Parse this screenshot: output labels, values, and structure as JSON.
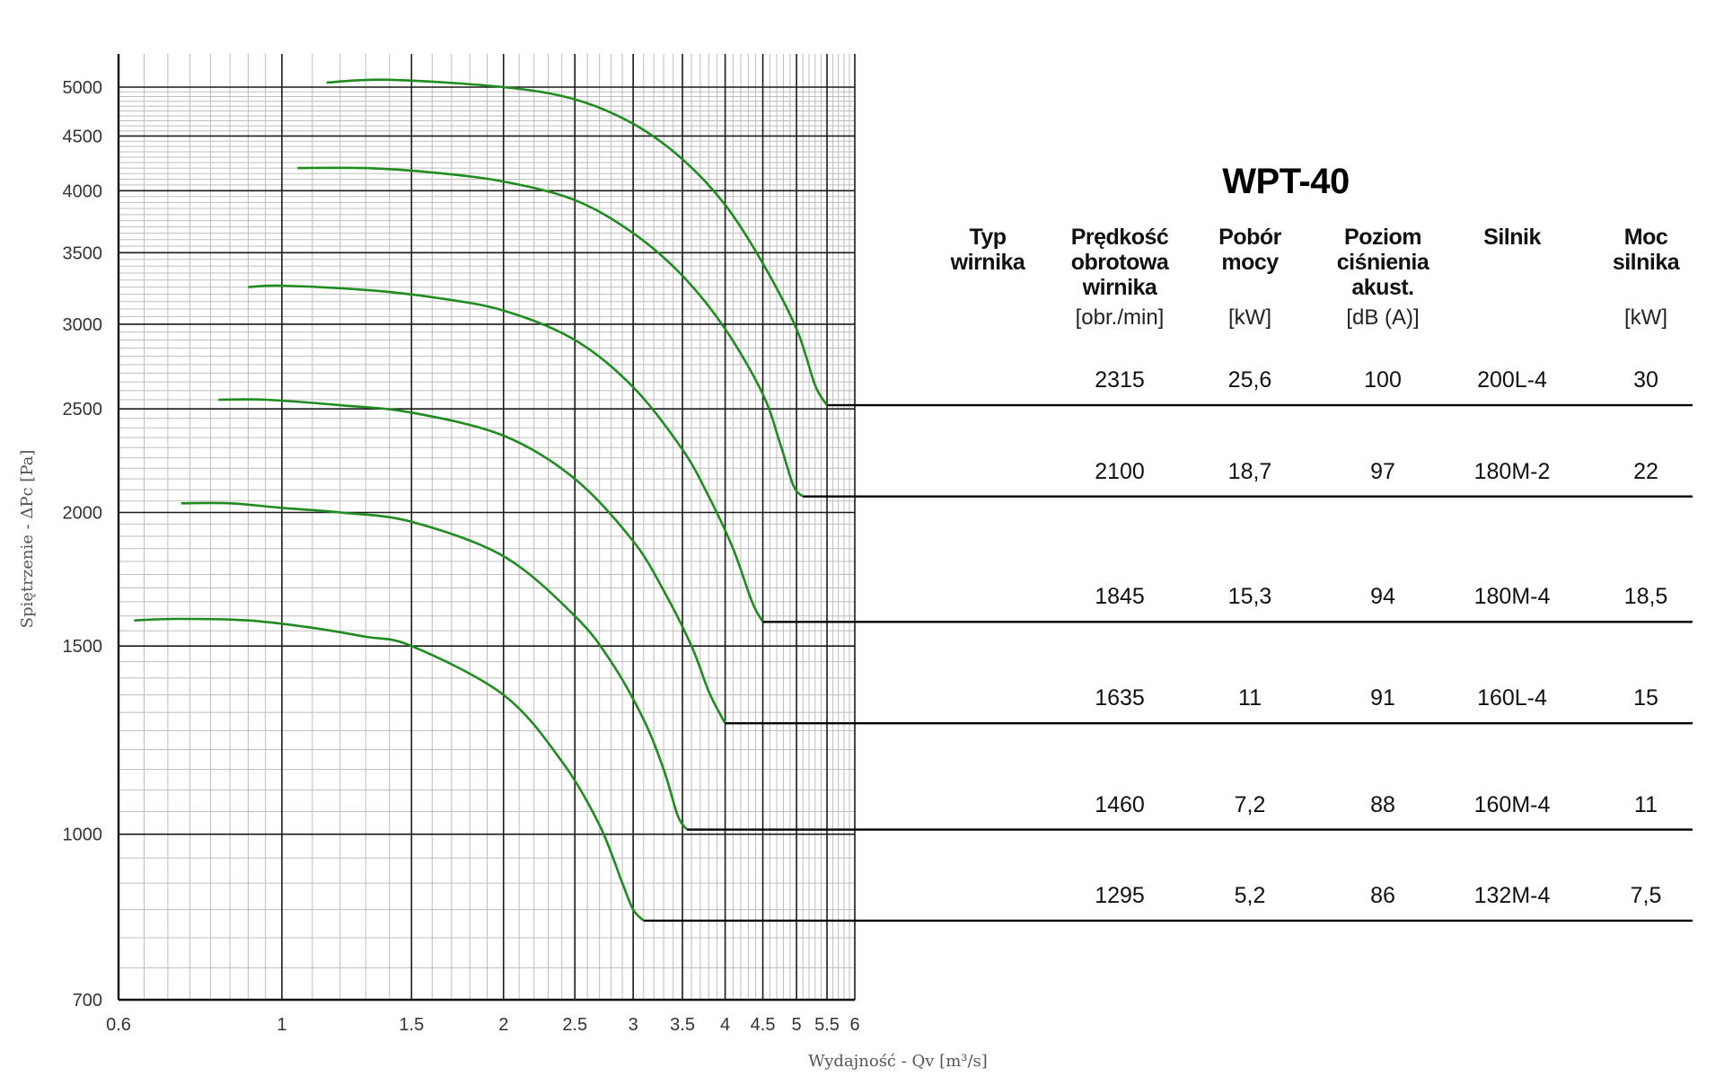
{
  "chart_data": {
    "type": "line",
    "title": "WPT-40",
    "xlabel": "Wydajność - Qv [m³/s]",
    "ylabel": "Spiętrzenie - ΔPc [Pa]",
    "xscale": "log",
    "yscale": "log",
    "xlim": [
      0.6,
      6
    ],
    "ylim": [
      700,
      5000
    ],
    "x_ticks": [
      0.6,
      1,
      1.5,
      2,
      2.5,
      3,
      3.5,
      4,
      4.5,
      5,
      5.5,
      6
    ],
    "x_tick_labels": [
      "0.6",
      "1",
      "1.5",
      "2",
      "2.5",
      "3",
      "3.5",
      "4",
      "4.5",
      "5",
      "5.5",
      "6"
    ],
    "y_ticks": [
      700,
      1000,
      1500,
      2000,
      2500,
      3000,
      3500,
      4000,
      4500,
      5000
    ],
    "y_tick_labels": [
      "700",
      "1000",
      "1500",
      "2000",
      "2500",
      "3000",
      "3500",
      "4000",
      "4500",
      "5000"
    ],
    "grid": true,
    "curve_color": "#1e8c1e",
    "series": [
      {
        "x": [
          1.15,
          1.4,
          2.0,
          2.5,
          3.0,
          3.5,
          4.0,
          4.5,
          5.0,
          5.3,
          5.5,
          5.7,
          6.0
        ],
        "y": [
          5050,
          5080,
          5000,
          4870,
          4620,
          4280,
          3880,
          3420,
          2970,
          2630,
          2520,
          2520,
          2520
        ]
      },
      {
        "x": [
          1.05,
          1.3,
          1.6,
          2.0,
          2.5,
          3.0,
          3.5,
          4.0,
          4.5,
          4.75,
          4.95,
          5.1,
          6.0
        ],
        "y": [
          4200,
          4200,
          4160,
          4080,
          3920,
          3650,
          3330,
          2970,
          2580,
          2320,
          2120,
          2070,
          2070
        ]
      },
      {
        "x": [
          0.9,
          1.0,
          1.3,
          1.6,
          2.0,
          2.5,
          3.0,
          3.5,
          3.8,
          4.1,
          4.35,
          4.5,
          6.0
        ],
        "y": [
          3250,
          3260,
          3230,
          3180,
          3090,
          2900,
          2620,
          2290,
          2070,
          1850,
          1650,
          1580,
          1580
        ]
      },
      {
        "x": [
          0.82,
          0.95,
          1.2,
          1.5,
          2.0,
          2.5,
          3.0,
          3.3,
          3.6,
          3.8,
          3.95,
          4.0,
          6.0
        ],
        "y": [
          2550,
          2550,
          2520,
          2480,
          2360,
          2150,
          1880,
          1690,
          1500,
          1360,
          1290,
          1270,
          1270
        ]
      },
      {
        "x": [
          0.73,
          0.85,
          1.0,
          1.2,
          1.5,
          2.0,
          2.5,
          2.8,
          3.1,
          3.3,
          3.45,
          3.55,
          6.0
        ],
        "y": [
          2040,
          2040,
          2020,
          2000,
          1960,
          1820,
          1600,
          1450,
          1280,
          1150,
          1040,
          1010,
          1010
        ]
      },
      {
        "x": [
          0.63,
          0.72,
          0.9,
          1.1,
          1.3,
          1.5,
          2.0,
          2.4,
          2.7,
          2.9,
          3.0,
          3.1,
          6.0
        ],
        "y": [
          1585,
          1590,
          1585,
          1560,
          1530,
          1500,
          1350,
          1170,
          1020,
          900,
          850,
          830,
          830
        ]
      }
    ],
    "table": {
      "headers": [
        {
          "title": "Typ\nwirnika",
          "unit": ""
        },
        {
          "title": "Prędkość\nobrotowa\nwirnika",
          "unit": "[obr./min]"
        },
        {
          "title": "Pobór\nmocy",
          "unit": "[kW]"
        },
        {
          "title": "Poziom\nciśnienia\nakust.",
          "unit": "[dB (A)]"
        },
        {
          "title": "Silnik",
          "unit": ""
        },
        {
          "title": "Moc\nsilnika",
          "unit": "[kW]"
        }
      ],
      "rows": [
        {
          "speed": "2315",
          "power": "25,6",
          "sound": "100",
          "motor": "200L-4",
          "motor_power": "30"
        },
        {
          "speed": "2100",
          "power": "18,7",
          "sound": "97",
          "motor": "180M-2",
          "motor_power": "22"
        },
        {
          "speed": "1845",
          "power": "15,3",
          "sound": "94",
          "motor": "180M-4",
          "motor_power": "18,5"
        },
        {
          "speed": "1635",
          "power": "11",
          "sound": "91",
          "motor": "160L-4",
          "motor_power": "15"
        },
        {
          "speed": "1460",
          "power": "7,2",
          "sound": "88",
          "motor": "160M-4",
          "motor_power": "11"
        },
        {
          "speed": "1295",
          "power": "5,2",
          "sound": "86",
          "motor": "132M-4",
          "motor_power": "7,5"
        }
      ]
    }
  }
}
